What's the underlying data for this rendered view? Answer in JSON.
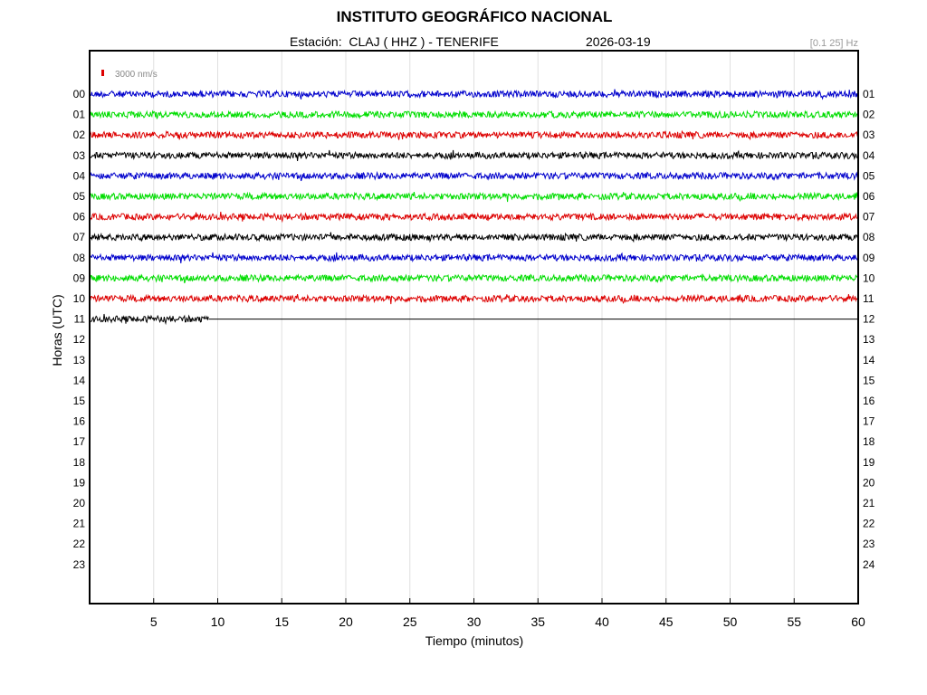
{
  "header": {
    "title": "INSTITUTO GEOGRÁFICO NACIONAL",
    "station": "Estación:  CLAJ ( HHZ ) - TENERIFE",
    "date": "2026-03-19",
    "filter": "[0.1 25] Hz"
  },
  "scale_label": "3000 nm/s",
  "colors": {
    "trace_cycle": [
      "#0000cc",
      "#00dd00",
      "#dd0000",
      "#000000"
    ],
    "scale_bar": "#dd0000",
    "grid": "#e0e0e0"
  },
  "chart_data": {
    "type": "line",
    "title": "INSTITUTO GEOGRÁFICO NACIONAL",
    "xlabel": "Tiempo (minutos)",
    "ylabel": "Horas (UTC)",
    "xlim": [
      0,
      60
    ],
    "x_ticks": [
      "5",
      "10",
      "15",
      "20",
      "25",
      "30",
      "35",
      "40",
      "45",
      "50",
      "55",
      "60"
    ],
    "y_ticks_left": [
      "00",
      "01",
      "02",
      "03",
      "04",
      "05",
      "06",
      "07",
      "08",
      "09",
      "10",
      "11",
      "12",
      "13",
      "14",
      "15",
      "16",
      "17",
      "18",
      "19",
      "20",
      "21",
      "22",
      "23"
    ],
    "y_ticks_right": [
      "01",
      "02",
      "03",
      "04",
      "05",
      "06",
      "07",
      "08",
      "09",
      "10",
      "11",
      "12",
      "13",
      "14",
      "15",
      "16",
      "17",
      "18",
      "19",
      "20",
      "21",
      "22",
      "23",
      "24"
    ],
    "grid": true,
    "series": [
      {
        "hour": "00",
        "color": "blue",
        "end_minute": 60
      },
      {
        "hour": "01",
        "color": "green",
        "end_minute": 60
      },
      {
        "hour": "02",
        "color": "red",
        "end_minute": 60
      },
      {
        "hour": "03",
        "color": "black",
        "end_minute": 60
      },
      {
        "hour": "04",
        "color": "blue",
        "end_minute": 60
      },
      {
        "hour": "05",
        "color": "green",
        "end_minute": 60
      },
      {
        "hour": "06",
        "color": "red",
        "end_minute": 60
      },
      {
        "hour": "07",
        "color": "black",
        "end_minute": 60
      },
      {
        "hour": "08",
        "color": "blue",
        "end_minute": 60
      },
      {
        "hour": "09",
        "color": "green",
        "end_minute": 60
      },
      {
        "hour": "10",
        "color": "red",
        "end_minute": 60
      },
      {
        "hour": "11",
        "color": "black",
        "end_minute": 9.3
      }
    ]
  }
}
